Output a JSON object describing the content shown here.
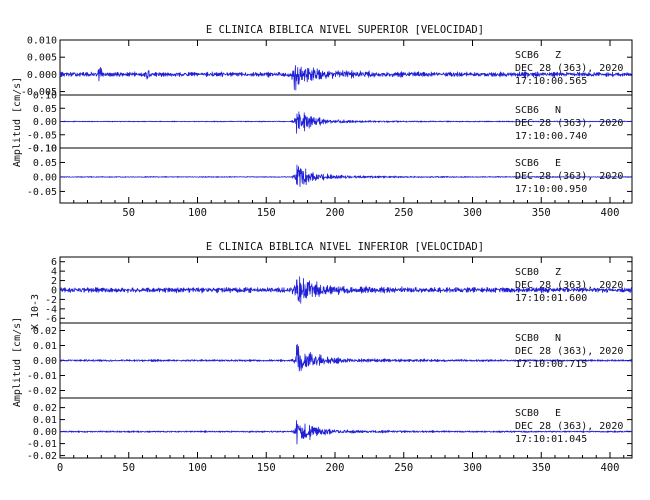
{
  "chart_data": [
    {
      "type": "line",
      "title": "E CLINICA BIBLICA NIVEL SUPERIOR [VELOCIDAD]",
      "ylabel": "Amplitud [cm/s]",
      "xlim": [
        0,
        416
      ],
      "x_ticks": [
        50,
        100,
        150,
        200,
        250,
        300,
        350,
        400
      ],
      "colors": {
        "trace": "#1f1fd6"
      },
      "panels": [
        {
          "station": "SCB6",
          "component": "Z",
          "date": "DEC 28 (363), 2020",
          "time": "17:10:00.565",
          "ylim": [
            -0.006,
            0.01
          ],
          "y_ticks": [
            "0.010",
            "0.005",
            "0.000",
            "-0.005"
          ],
          "y_tick_values": [
            0.01,
            0.005,
            0.0,
            -0.005
          ],
          "noise_amp": 0.0012,
          "event_x": 170,
          "event_peak": 0.0085
        },
        {
          "station": "SCB6",
          "component": "N",
          "date": "DEC 28 (363), 2020",
          "time": "17:10:00.740",
          "ylim": [
            -0.1,
            0.1
          ],
          "y_ticks": [
            "0.10",
            "0.05",
            "0.00",
            "-0.05",
            "-0.10"
          ],
          "y_tick_values": [
            0.1,
            0.05,
            0.0,
            -0.05,
            -0.1
          ],
          "noise_amp": 0.003,
          "event_x": 172,
          "event_peak": 0.09
        },
        {
          "station": "SCB6",
          "component": "E",
          "date": "DEC 28 (363), 2020",
          "time": "17:10:00.950",
          "ylim": [
            -0.09,
            0.1
          ],
          "y_ticks": [
            "0.10",
            "0.05",
            "0.00",
            "-0.05"
          ],
          "y_tick_values": [
            0.1,
            0.05,
            0.0,
            -0.05
          ],
          "noise_amp": 0.003,
          "event_x": 172,
          "event_peak": 0.085
        }
      ]
    },
    {
      "type": "line",
      "title": "E CLINICA BIBLICA NIVEL INFERIOR [VELOCIDAD]",
      "ylabel": "Amplitud [cm/s]",
      "xlim": [
        0,
        416
      ],
      "x_ticks": [
        0,
        50,
        100,
        150,
        200,
        250,
        300,
        350,
        400
      ],
      "colors": {
        "trace": "#1f1fd6"
      },
      "panels": [
        {
          "station": "SCB0",
          "component": "Z",
          "date": "DEC 28 (363), 2020",
          "time": "17:10:01.600",
          "ylim": [
            -7,
            7
          ],
          "y_ticks": [
            "6",
            "4",
            "2",
            "0",
            "-2",
            "-4",
            "-6"
          ],
          "y_tick_values": [
            6,
            4,
            2,
            0,
            -2,
            -4,
            -6
          ],
          "y_scale_note": "X 10-3",
          "noise_amp": 1.0,
          "event_x": 171,
          "event_peak": 6.5
        },
        {
          "station": "SCB0",
          "component": "N",
          "date": "DEC 28 (363), 2020",
          "time": "17:10:00.715",
          "ylim": [
            -0.025,
            0.025
          ],
          "y_ticks": [
            "0.02",
            "0.01",
            "0.00",
            "-0.01",
            "-0.02"
          ],
          "y_tick_values": [
            0.02,
            0.01,
            0.0,
            -0.01,
            -0.02
          ],
          "noise_amp": 0.0012,
          "event_x": 172,
          "event_peak": 0.02
        },
        {
          "station": "SCB0",
          "component": "E",
          "date": "DEC 28 (363), 2020",
          "time": "17:10:01.045",
          "ylim": [
            -0.022,
            0.028
          ],
          "y_ticks": [
            "0.02",
            "0.01",
            "0.00",
            "-0.01",
            "-0.02"
          ],
          "y_tick_values": [
            0.02,
            0.01,
            0.0,
            -0.01,
            -0.02
          ],
          "noise_amp": 0.0012,
          "event_x": 172,
          "event_peak": 0.02
        }
      ]
    }
  ]
}
